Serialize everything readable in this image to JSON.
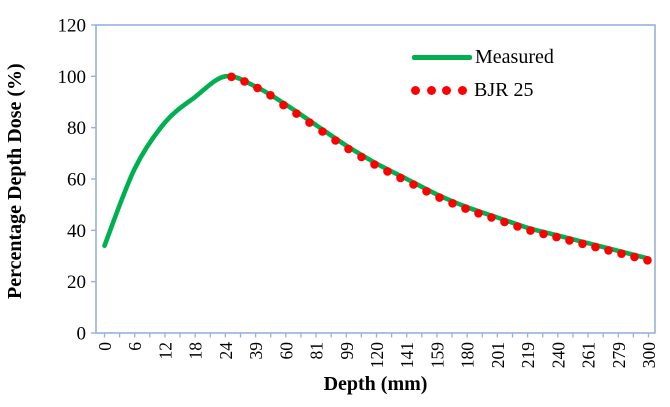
{
  "chart_data": {
    "type": "line",
    "title": "",
    "xlabel": "Depth (mm)",
    "ylabel": "Percentage Depth Dose (%)",
    "x_axis_type": "category",
    "categories": [
      "0",
      "6",
      "12",
      "18",
      "24",
      "39",
      "60",
      "81",
      "99",
      "120",
      "141",
      "159",
      "180",
      "201",
      "219",
      "240",
      "261",
      "279",
      "300"
    ],
    "minor_ticks_between_labels": 1,
    "x_label_rotation_degrees": -90,
    "ylim": [
      0,
      120
    ],
    "ytick_step": 20,
    "ytick_labels": [
      "0",
      "20",
      "40",
      "60",
      "80",
      "100",
      "120"
    ],
    "grid": false,
    "legend_position": "inside-top-right",
    "series": [
      {
        "name": "Measured",
        "type": "line",
        "color": "#00B050",
        "values": [
          34,
          64,
          82,
          92,
          100,
          96,
          89,
          81,
          73,
          66,
          60,
          54,
          49,
          45,
          41,
          38,
          35,
          32,
          29
        ]
      },
      {
        "name": "BJR 25",
        "type": "dots",
        "color": "#FF0000",
        "dot_count": 33,
        "depth_range": [
          24,
          300
        ],
        "values_at_labeled_depths": [
          100,
          96,
          89,
          81,
          73,
          66,
          60,
          54,
          49,
          45,
          41,
          38,
          35,
          31,
          29
        ]
      }
    ],
    "axis_color": "#95B3D7",
    "text_color": "#000000"
  }
}
